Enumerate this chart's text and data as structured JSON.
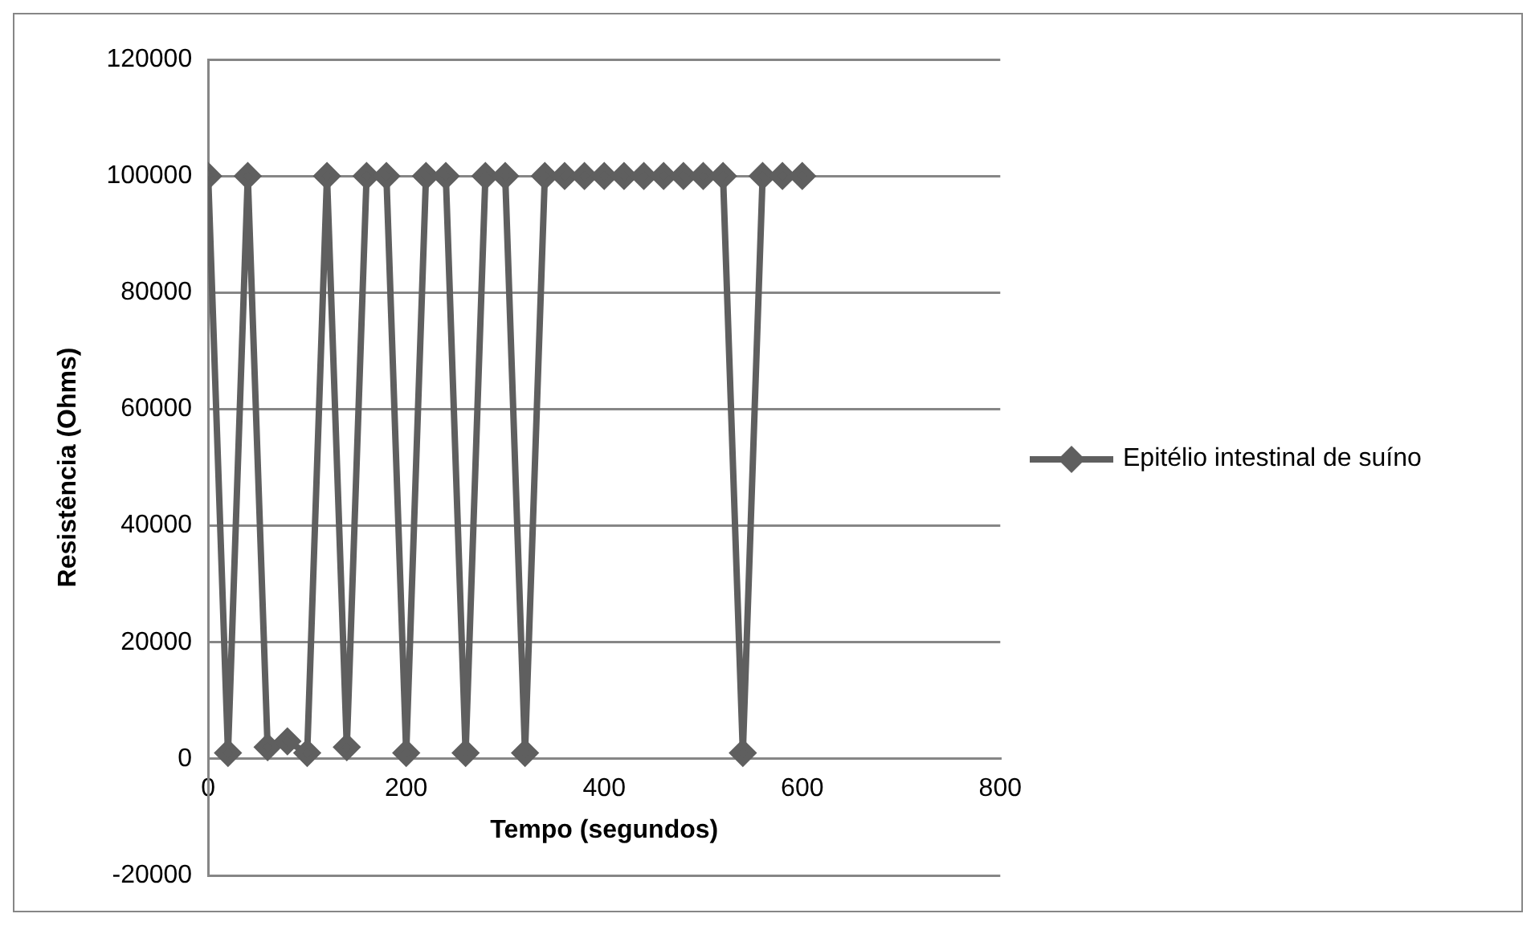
{
  "chart_data": {
    "type": "line",
    "xlabel": "Tempo (segundos)",
    "ylabel": "Resistência (Ohms)",
    "x": [
      0,
      20,
      40,
      60,
      80,
      100,
      120,
      140,
      160,
      180,
      200,
      220,
      240,
      260,
      280,
      300,
      320,
      340,
      360,
      380,
      400,
      420,
      440,
      460,
      480,
      500,
      520,
      540,
      560,
      580,
      600
    ],
    "series": [
      {
        "name": "Epitélio intestinal de suíno",
        "color": "#5f5f5f",
        "values": [
          100000,
          1000,
          100000,
          2000,
          3000,
          1000,
          100000,
          2000,
          100000,
          100000,
          1000,
          100000,
          100000,
          1000,
          100000,
          100000,
          1000,
          100000,
          100000,
          100000,
          100000,
          100000,
          100000,
          100000,
          100000,
          100000,
          100000,
          1000,
          100000,
          100000,
          100000
        ]
      }
    ],
    "xlim": [
      0,
      800
    ],
    "xticks": [
      0,
      200,
      400,
      600,
      800
    ],
    "ylim": [
      -20000,
      120000
    ],
    "yticks": [
      -20000,
      0,
      20000,
      40000,
      60000,
      80000,
      100000,
      120000
    ],
    "grid": "y",
    "legend": "right",
    "marker": "diamond",
    "line_style": "solid"
  }
}
